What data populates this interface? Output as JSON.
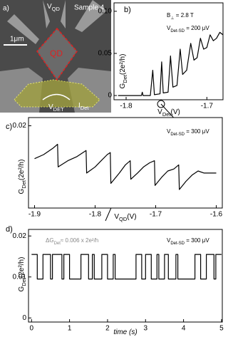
{
  "image": {
    "panel": "a)",
    "vqd": [
      "V",
      "QD"
    ],
    "sample": "Sample 4",
    "scale": "1μm",
    "qd": "QD",
    "vdet": [
      "V",
      "DET"
    ],
    "idet": [
      "I",
      "Det"
    ]
  },
  "chart_data": [
    {
      "type": "line",
      "panel": "b)",
      "color": "#000000",
      "xlabel": [
        "V",
        "Det",
        "(V)"
      ],
      "ylabel": [
        "G",
        "Det",
        "(2e²/h)"
      ],
      "annotations": [
        [
          "B",
          "⊥",
          " = 2.8 T"
        ],
        [
          "V",
          "Det-SD",
          " = 200 μV"
        ]
      ],
      "x": [
        -1.81,
        -1.79,
        -1.781,
        -1.78,
        -1.779,
        -1.77,
        -1.767,
        -1.765,
        -1.758,
        -1.756,
        -1.754,
        -1.748,
        -1.745,
        -1.742,
        -1.737,
        -1.733,
        -1.73,
        -1.725,
        -1.72,
        -1.716,
        -1.712,
        -1.708,
        -1.704,
        -1.7,
        -1.696,
        -1.692,
        -1.688,
        -1.684,
        -1.68
      ],
      "values": [
        0,
        0,
        0,
        0.004,
        0,
        0,
        0.03,
        0.001,
        0.002,
        0.04,
        0.003,
        0.004,
        0.047,
        0.01,
        0.012,
        0.055,
        0.025,
        0.03,
        0.062,
        0.042,
        0.045,
        0.068,
        0.055,
        0.057,
        0.072,
        0.065,
        0.068,
        0.075,
        0.072
      ],
      "xlim": [
        -1.815,
        -1.68
      ],
      "ylim": [
        -0.005,
        0.11
      ],
      "xticks": [
        -1.8,
        -1.7
      ],
      "yticks": [
        0,
        0.05,
        {
          "value": 0.1,
          "label": "0.10"
        }
      ]
    },
    {
      "type": "line",
      "panel": "c)",
      "color": "#000000",
      "xlabel": [
        "V",
        "QD",
        "(V)"
      ],
      "ylabel": [
        "G",
        "Det",
        "(2e²/h)"
      ],
      "annotations": [
        [
          "V",
          "Det-SD",
          " = 300 μV"
        ]
      ],
      "x": [
        -1.9,
        -1.885,
        -1.87,
        -1.862,
        -1.861,
        -1.845,
        -1.83,
        -1.82,
        -1.815,
        -1.814,
        -1.8,
        -1.79,
        -1.78,
        -1.775,
        -1.774,
        -1.76,
        -1.75,
        -1.742,
        -1.741,
        -1.73,
        -1.72,
        -1.71,
        -1.702,
        -1.701,
        -1.69,
        -1.68,
        -1.67,
        -1.662,
        -1.661,
        -1.65,
        -1.64,
        -1.63,
        -1.62,
        -1.61,
        -1.6
      ],
      "values": [
        0.012,
        0.013,
        0.0145,
        0.0155,
        0.01,
        0.0115,
        0.0125,
        0.0135,
        0.014,
        0.0085,
        0.01,
        0.0115,
        0.013,
        0.0135,
        0.006,
        0.0085,
        0.0105,
        0.0115,
        0.007,
        0.0085,
        0.01,
        0.011,
        0.0115,
        0.0055,
        0.0075,
        0.009,
        0.0095,
        0.0105,
        0.0045,
        0.0065,
        0.008,
        0.009,
        0.0085,
        0.0085,
        0.0085
      ],
      "xlim": [
        -1.91,
        -1.59
      ],
      "ylim": [
        0,
        0.022
      ],
      "xticks": [
        -1.9,
        -1.8,
        -1.7,
        -1.6
      ],
      "yticks": [
        0.02
      ]
    },
    {
      "type": "line",
      "panel": "d)",
      "color": "#000000",
      "xlabel": [
        "time (s)"
      ],
      "ylabel": [
        "G",
        "Det",
        "(2e²/h)"
      ],
      "annotations": [
        [
          "V",
          "Det-SD",
          " = 300 μV"
        ],
        [
          "ΔG",
          "Det",
          "≈ 0.006 x 2e²/h"
        ]
      ],
      "x": [
        0,
        0.15,
        0.15,
        0.3,
        0.3,
        0.5,
        0.5,
        0.55,
        0.55,
        0.8,
        0.8,
        0.85,
        0.85,
        1.0,
        1.0,
        1.3,
        1.3,
        1.5,
        1.5,
        1.6,
        1.6,
        1.65,
        1.65,
        1.85,
        1.85,
        2.0,
        2.0,
        2.15,
        2.15,
        2.2,
        2.2,
        2.75,
        2.75,
        2.9,
        2.9,
        3.0,
        3.0,
        3.15,
        3.15,
        3.3,
        3.3,
        3.35,
        3.35,
        3.5,
        3.5,
        3.6,
        3.6,
        3.8,
        3.8,
        3.85,
        3.85,
        4.3,
        4.3,
        4.45,
        4.45,
        4.6,
        4.6,
        4.8,
        4.8,
        4.85,
        4.85,
        5.0
      ],
      "values": [
        0.0155,
        0.0155,
        0.0095,
        0.0095,
        0.0155,
        0.0155,
        0.0095,
        0.0095,
        0.0155,
        0.0155,
        0.0095,
        0.0095,
        0.0155,
        0.0155,
        0.0095,
        0.0095,
        0.0155,
        0.0155,
        0.0095,
        0.0095,
        0.0155,
        0.0155,
        0.0095,
        0.0095,
        0.0155,
        0.0155,
        0.0095,
        0.0095,
        0.0155,
        0.0155,
        0.0095,
        0.0095,
        0.0155,
        0.0155,
        0.0095,
        0.0095,
        0.0155,
        0.0155,
        0.0095,
        0.0095,
        0.0155,
        0.0155,
        0.0095,
        0.0095,
        0.0155,
        0.0155,
        0.0095,
        0.0095,
        0.0155,
        0.0155,
        0.0095,
        0.0095,
        0.0155,
        0.0155,
        0.0095,
        0.0095,
        0.0155,
        0.0155,
        0.0095,
        0.0095,
        0.0155,
        0.0155
      ],
      "xlim": [
        -0.08,
        5.02
      ],
      "ylim": [
        -0.001,
        0.0216
      ],
      "xticks": [
        0,
        1,
        2,
        3,
        4,
        5
      ],
      "yticks": [
        0,
        0.01,
        0.02
      ]
    }
  ]
}
